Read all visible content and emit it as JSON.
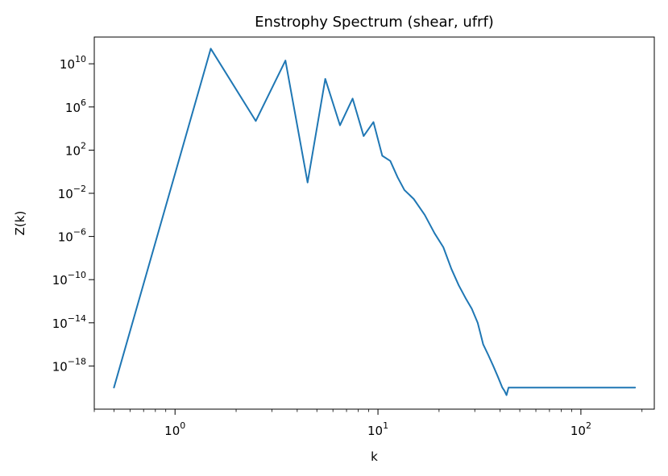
{
  "chart_data": {
    "type": "line",
    "title": "Enstrophy Spectrum (shear, ufrf)",
    "xlabel": "k",
    "ylabel": "Z(k)",
    "xscale": "log",
    "yscale": "log",
    "xlim": [
      0.4,
      230
    ],
    "ylim": [
      1e-22,
      3000000000000.0
    ],
    "xticks": [
      1,
      10,
      100
    ],
    "xtick_labels": [
      {
        "base": "10",
        "exp": "0"
      },
      {
        "base": "10",
        "exp": "1"
      },
      {
        "base": "10",
        "exp": "2"
      }
    ],
    "yticks": [
      1e-18,
      1e-14,
      1e-10,
      1e-06,
      0.01,
      100.0,
      1000000.0,
      10000000000.0
    ],
    "ytick_labels": [
      {
        "base": "10",
        "exp": "−18"
      },
      {
        "base": "10",
        "exp": "−14"
      },
      {
        "base": "10",
        "exp": "−10"
      },
      {
        "base": "10",
        "exp": "−6"
      },
      {
        "base": "10",
        "exp": "−2"
      },
      {
        "base": "10",
        "exp": "2"
      },
      {
        "base": "10",
        "exp": "6"
      },
      {
        "base": "10",
        "exp": "10"
      }
    ],
    "grid": false,
    "series": [
      {
        "color": "#1f77b4",
        "x": [
          0.5,
          1.5,
          2.5,
          3.5,
          4.5,
          5.5,
          6.5,
          7.5,
          8.5,
          9.5,
          10.5,
          11.5,
          12.5,
          13.5,
          15,
          17,
          19,
          21,
          23,
          25,
          27,
          29,
          31,
          32,
          33,
          35,
          37,
          39,
          41,
          42,
          43,
          44,
          50,
          60,
          70,
          80,
          100,
          130,
          160,
          185
        ],
        "y": [
          1e-20,
          250000000000.0,
          50000.0,
          20000000000.0,
          0.1,
          400000000.0,
          20000.0,
          6000000.0,
          2000.0,
          40000.0,
          30.0,
          10.0,
          0.3,
          0.02,
          0.003,
          0.0001,
          2e-06,
          1e-07,
          1e-09,
          3e-11,
          2e-12,
          2e-13,
          1e-14,
          1e-15,
          1e-16,
          1e-17,
          1e-18,
          1e-19,
          1e-20,
          5e-21,
          2e-21,
          1e-20,
          1e-20,
          1e-20,
          1e-20,
          1e-20,
          1e-20,
          1e-20,
          1e-20,
          1e-20
        ]
      }
    ]
  }
}
